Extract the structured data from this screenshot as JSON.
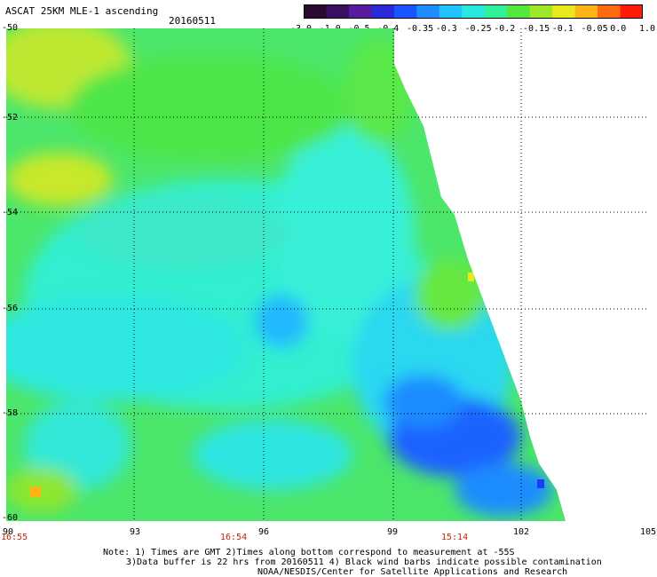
{
  "header": {
    "title": "ASCAT 25KM MLE-1 ascending",
    "date": "20160511"
  },
  "colorbar": {
    "labels": [
      "-3.0",
      "-1.0",
      "-0.5",
      "-0.4",
      "-0.35",
      "-0.3",
      "-0.25",
      "-0.2",
      "-0.15",
      "-0.1",
      "-0.05",
      "0.0",
      "1.0"
    ],
    "colors": [
      "#2a0a2e",
      "#3a1060",
      "#5a1aa0",
      "#2a2ad8",
      "#1b55ff",
      "#1f8cff",
      "#22c4ff",
      "#2ae8e0",
      "#33f09a",
      "#55e83c",
      "#9ee82a",
      "#e8e81c",
      "#ffb416",
      "#ff6a10",
      "#ff1b0a"
    ]
  },
  "axes": {
    "y_labels": [
      "-50",
      "-52",
      "-54",
      "-56",
      "-58",
      "-60"
    ],
    "x_labels": [
      "90",
      "93",
      "96",
      "99",
      "102",
      "105"
    ],
    "time_labels": [
      "16:55",
      "16:54",
      "15:14"
    ]
  },
  "map_data": {
    "lat_range": [
      -60,
      -50
    ],
    "lon_range": [
      90,
      105
    ],
    "field": "ASCAT MLE-1 values over Southern Ocean swath; mostly -0.3 to -0.15 with deeper minima near 100E 58S",
    "grid": "dotted"
  },
  "notes": {
    "line1": "Note: 1) Times are GMT 2)Times along bottom correspond to measurement at -55S",
    "line2": "3)Data buffer is 22 hrs from 20160511 4) Black wind barbs indicate possible contamination",
    "line3": "NOAA/NESDIS/Center for Satellite Applications and Research"
  }
}
